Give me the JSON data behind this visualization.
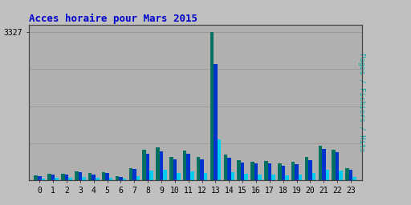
{
  "title": "Acces horaire pour Mars 2015",
  "hours": [
    0,
    1,
    2,
    3,
    4,
    5,
    6,
    7,
    8,
    9,
    10,
    11,
    12,
    13,
    14,
    15,
    16,
    17,
    18,
    19,
    20,
    21,
    22,
    23
  ],
  "pages": [
    120,
    155,
    150,
    210,
    160,
    185,
    100,
    280,
    680,
    740,
    520,
    670,
    520,
    3327,
    580,
    450,
    425,
    430,
    380,
    415,
    520,
    785,
    695,
    275
  ],
  "fichiers": [
    100,
    135,
    130,
    185,
    135,
    162,
    82,
    255,
    600,
    655,
    475,
    595,
    465,
    2600,
    510,
    405,
    375,
    380,
    335,
    365,
    460,
    705,
    625,
    240
  ],
  "hits": [
    45,
    55,
    55,
    80,
    52,
    65,
    38,
    95,
    215,
    235,
    175,
    200,
    160,
    920,
    185,
    145,
    135,
    135,
    118,
    128,
    160,
    245,
    215,
    82
  ],
  "color_pages": "#007060",
  "color_fichiers": "#0033cc",
  "color_hits": "#00ccee",
  "bg_color": "#b0b0b0",
  "plot_bg": "#b0b0b0",
  "outer_bg": "#c0c0c0",
  "title_color": "#0000cc",
  "ylabel_color": "#00aaaa",
  "ylabel_text": "Pages / Fichiers / Hits",
  "ymax": 3327,
  "bar_width": 0.27,
  "tick_fontsize": 7,
  "title_fontsize": 9
}
